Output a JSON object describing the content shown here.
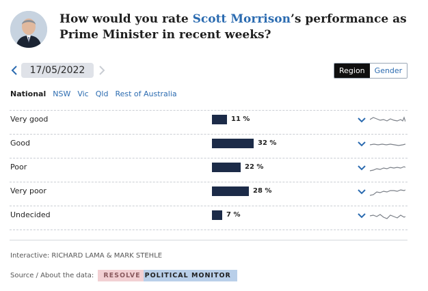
{
  "header": {
    "question_prefix": "How would you rate ",
    "person": "Scott Morrison",
    "question_suffix": "’s performance as Prime Minister in recent weeks?"
  },
  "date": "17/05/2022",
  "toggle": {
    "region": "Region",
    "gender": "Gender",
    "selected": "Region"
  },
  "tabs": [
    "National",
    "NSW",
    "Vic",
    "Qld",
    "Rest of Australia"
  ],
  "selected_tab": "National",
  "chart_data": {
    "type": "bar",
    "categories": [
      "Very good",
      "Good",
      "Poor",
      "Very poor",
      "Undecided"
    ],
    "values": [
      11,
      32,
      22,
      28,
      7
    ],
    "value_labels": [
      "11 %",
      "32 %",
      "22 %",
      "28 %",
      "7 %"
    ],
    "bar_color": "#1c2b48"
  },
  "footer": {
    "credit": "Interactive: RICHARD LAMA & MARK STEHLE",
    "source_label": "Source / About the data:",
    "badge_part1": "RESOLVE",
    "badge_part2": "POLITICAL MONITOR"
  },
  "colors": {
    "accent": "#2b6bb0",
    "bar": "#1c2b48",
    "pill": "#dfe2e8"
  }
}
